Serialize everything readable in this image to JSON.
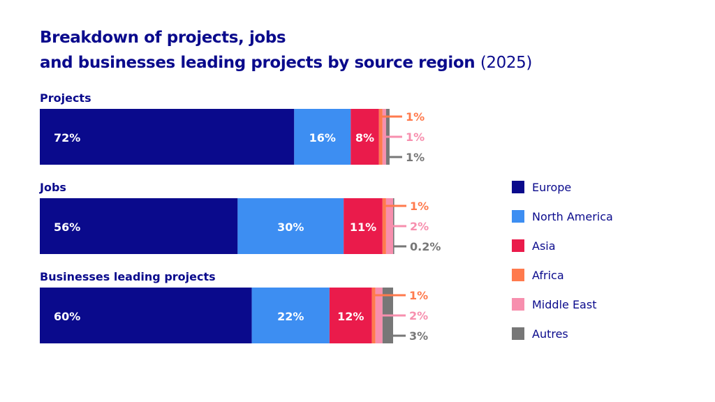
{
  "title": {
    "line1": "Breakdown of projects, jobs",
    "line2": "and businesses leading projects by source region",
    "year": "(2025)"
  },
  "colors": {
    "Europe": "#0a0a8c",
    "North America": "#3d8ef2",
    "Asia": "#ea1b4b",
    "Africa": "#ff7a4d",
    "Middle East": "#f78fae",
    "Autres": "#777777",
    "title": "#0a0a8c"
  },
  "chart_data": {
    "type": "bar",
    "orientation": "horizontal",
    "stacked": true,
    "categories": [
      "Projects",
      "Jobs",
      "Businesses leading projects"
    ],
    "series": [
      {
        "name": "Europe",
        "values": [
          72,
          56,
          60
        ],
        "labels": [
          "72%",
          "56%",
          "60%"
        ]
      },
      {
        "name": "North America",
        "values": [
          16,
          30,
          22
        ],
        "labels": [
          "16%",
          "30%",
          "22%"
        ]
      },
      {
        "name": "Asia",
        "values": [
          8,
          11,
          12
        ],
        "labels": [
          "8%",
          "11%",
          "12%"
        ]
      },
      {
        "name": "Africa",
        "values": [
          1,
          1,
          1
        ],
        "labels": [
          "1%",
          "1%",
          "1%"
        ]
      },
      {
        "name": "Middle East",
        "values": [
          1,
          2,
          2
        ],
        "labels": [
          "1%",
          "2%",
          "2%"
        ]
      },
      {
        "name": "Autres",
        "values": [
          1,
          0.2,
          3
        ],
        "labels": [
          "1%",
          "0.2%",
          "3%"
        ]
      }
    ],
    "xlim": [
      0,
      100
    ],
    "grid": false,
    "legend": "right"
  },
  "legend": [
    {
      "label": "Europe",
      "color": "#0a0a8c"
    },
    {
      "label": "North America",
      "color": "#3d8ef2"
    },
    {
      "label": "Asia",
      "color": "#ea1b4b"
    },
    {
      "label": "Africa",
      "color": "#ff7a4d"
    },
    {
      "label": "Middle East",
      "color": "#f78fae"
    },
    {
      "label": "Autres",
      "color": "#777777"
    }
  ]
}
